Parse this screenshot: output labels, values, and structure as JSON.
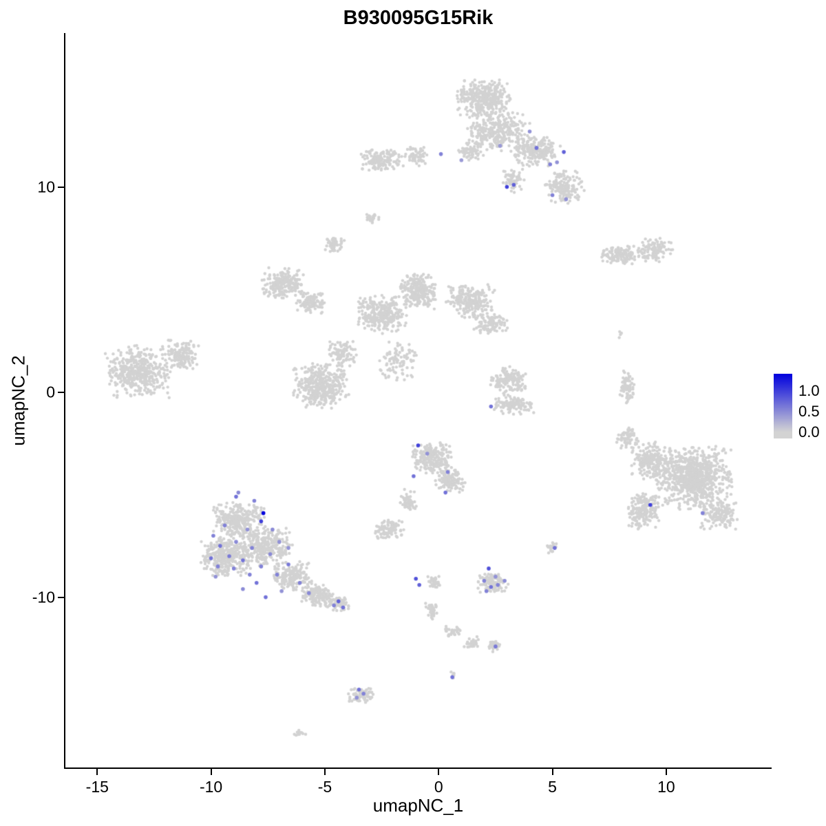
{
  "title": "B930095G15Rik",
  "legend": {
    "labels": {
      "high": "1.0",
      "mid": "0.5",
      "low": "0.0"
    },
    "color_high": "#0000dd",
    "color_low": "#d3d3d3"
  },
  "chart_data": {
    "type": "scatter",
    "title": "B930095G15Rik",
    "xlabel": "umapNC_1",
    "ylabel": "umapNC_2",
    "xlim": [
      -16.4,
      14.6
    ],
    "ylim": [
      -18.3,
      17.5
    ],
    "x_ticks": [
      -15,
      -10,
      -5,
      0,
      5,
      10
    ],
    "y_ticks": [
      10,
      0,
      -10
    ],
    "grid": false,
    "legend_position": "right",
    "point_color_low": "#d3d3d3",
    "point_color_high": "#0000dd",
    "background_point_color": "#d2d2d2",
    "expression_scale_max": 1.3,
    "seed": 42,
    "background_clusters": [
      {
        "cx": 2.0,
        "cy": 14.3,
        "rx": 1.3,
        "ry": 0.95,
        "n": 350
      },
      {
        "cx": 2.6,
        "cy": 12.7,
        "rx": 1.5,
        "ry": 1.0,
        "n": 300
      },
      {
        "cx": 4.3,
        "cy": 11.7,
        "rx": 1.2,
        "ry": 0.8,
        "n": 200
      },
      {
        "cx": 5.5,
        "cy": 10.0,
        "rx": 0.9,
        "ry": 0.9,
        "n": 150
      },
      {
        "cx": 1.4,
        "cy": 11.7,
        "rx": 0.6,
        "ry": 0.5,
        "n": 60
      },
      {
        "cx": 3.3,
        "cy": 10.3,
        "rx": 0.5,
        "ry": 0.6,
        "n": 60
      },
      {
        "cx": -2.5,
        "cy": 11.3,
        "rx": 1.0,
        "ry": 0.6,
        "n": 140
      },
      {
        "cx": -1.0,
        "cy": 11.5,
        "rx": 0.6,
        "ry": 0.5,
        "n": 60
      },
      {
        "cx": -2.9,
        "cy": 8.5,
        "rx": 0.35,
        "ry": 0.3,
        "n": 25
      },
      {
        "cx": -4.6,
        "cy": 7.2,
        "rx": 0.5,
        "ry": 0.45,
        "n": 50
      },
      {
        "cx": 8.0,
        "cy": 6.7,
        "rx": 1.0,
        "ry": 0.5,
        "n": 130
      },
      {
        "cx": 9.5,
        "cy": 6.9,
        "rx": 0.8,
        "ry": 0.6,
        "n": 110
      },
      {
        "cx": 8.1,
        "cy": 2.8,
        "rx": 0.25,
        "ry": 0.25,
        "n": 4
      },
      {
        "cx": -6.8,
        "cy": 5.3,
        "rx": 1.0,
        "ry": 0.8,
        "n": 220
      },
      {
        "cx": -5.6,
        "cy": 4.4,
        "rx": 0.7,
        "ry": 0.6,
        "n": 100
      },
      {
        "cx": -2.5,
        "cy": 3.8,
        "rx": 1.2,
        "ry": 1.0,
        "n": 280
      },
      {
        "cx": -0.9,
        "cy": 4.9,
        "rx": 0.9,
        "ry": 0.9,
        "n": 220
      },
      {
        "cx": 1.4,
        "cy": 4.4,
        "rx": 1.1,
        "ry": 0.9,
        "n": 220
      },
      {
        "cx": 2.3,
        "cy": 3.3,
        "rx": 0.8,
        "ry": 0.6,
        "n": 100
      },
      {
        "cx": -1.8,
        "cy": 1.5,
        "rx": 0.9,
        "ry": 1.0,
        "n": 90
      },
      {
        "cx": -5.2,
        "cy": 0.3,
        "rx": 1.3,
        "ry": 1.2,
        "n": 380
      },
      {
        "cx": -4.2,
        "cy": 1.9,
        "rx": 0.7,
        "ry": 0.7,
        "n": 90
      },
      {
        "cx": -13.2,
        "cy": 1.0,
        "rx": 1.5,
        "ry": 1.3,
        "n": 450
      },
      {
        "cx": -11.3,
        "cy": 1.8,
        "rx": 0.8,
        "ry": 0.8,
        "n": 130
      },
      {
        "cx": 3.1,
        "cy": 0.6,
        "rx": 0.9,
        "ry": 0.7,
        "n": 140
      },
      {
        "cx": 3.3,
        "cy": -0.6,
        "rx": 1.0,
        "ry": 0.5,
        "n": 120
      },
      {
        "cx": 8.3,
        "cy": 0.3,
        "rx": 0.35,
        "ry": 0.9,
        "n": 70
      },
      {
        "cx": 11.2,
        "cy": -4.2,
        "rx": 1.8,
        "ry": 1.6,
        "n": 800
      },
      {
        "cx": 9.3,
        "cy": -3.4,
        "rx": 0.9,
        "ry": 1.0,
        "n": 220
      },
      {
        "cx": 9.0,
        "cy": -5.8,
        "rx": 0.8,
        "ry": 0.9,
        "n": 180
      },
      {
        "cx": 12.3,
        "cy": -6.0,
        "rx": 0.9,
        "ry": 0.7,
        "n": 150
      },
      {
        "cx": 8.3,
        "cy": -2.3,
        "rx": 0.5,
        "ry": 0.6,
        "n": 60
      },
      {
        "cx": -0.3,
        "cy": -3.2,
        "rx": 0.9,
        "ry": 0.8,
        "n": 220
      },
      {
        "cx": 0.5,
        "cy": -4.3,
        "rx": 0.7,
        "ry": 0.6,
        "n": 120
      },
      {
        "cx": -1.3,
        "cy": -5.3,
        "rx": 0.4,
        "ry": 0.7,
        "n": 50
      },
      {
        "cx": -2.2,
        "cy": -6.7,
        "rx": 0.7,
        "ry": 0.5,
        "n": 90
      },
      {
        "cx": -8.8,
        "cy": -6.2,
        "rx": 1.2,
        "ry": 0.9,
        "n": 280
      },
      {
        "cx": -9.4,
        "cy": -8.0,
        "rx": 1.1,
        "ry": 1.1,
        "n": 320
      },
      {
        "cx": -7.6,
        "cy": -7.6,
        "rx": 1.2,
        "ry": 1.1,
        "n": 300
      },
      {
        "cx": -6.4,
        "cy": -9.0,
        "rx": 0.9,
        "ry": 0.8,
        "n": 180
      },
      {
        "cx": -5.3,
        "cy": -9.9,
        "rx": 0.8,
        "ry": 0.6,
        "n": 130
      },
      {
        "cx": -4.4,
        "cy": -10.3,
        "rx": 0.6,
        "ry": 0.4,
        "n": 80
      },
      {
        "cx": 2.4,
        "cy": -9.3,
        "rx": 0.7,
        "ry": 0.5,
        "n": 110
      },
      {
        "cx": -0.2,
        "cy": -9.3,
        "rx": 0.3,
        "ry": 0.4,
        "n": 30
      },
      {
        "cx": -0.3,
        "cy": -10.6,
        "rx": 0.3,
        "ry": 0.5,
        "n": 35
      },
      {
        "cx": 0.6,
        "cy": -11.7,
        "rx": 0.4,
        "ry": 0.3,
        "n": 30
      },
      {
        "cx": 1.5,
        "cy": -12.2,
        "rx": 0.4,
        "ry": 0.3,
        "n": 30
      },
      {
        "cx": 2.4,
        "cy": -12.4,
        "rx": 0.3,
        "ry": 0.3,
        "n": 30
      },
      {
        "cx": -3.4,
        "cy": -14.8,
        "rx": 0.6,
        "ry": 0.4,
        "n": 70
      },
      {
        "cx": -6.1,
        "cy": -16.6,
        "rx": 0.3,
        "ry": 0.2,
        "n": 12
      },
      {
        "cx": 5.0,
        "cy": -7.6,
        "rx": 0.3,
        "ry": 0.3,
        "n": 25
      },
      {
        "cx": 0.7,
        "cy": -13.8,
        "rx": 0.3,
        "ry": 0.3,
        "n": 6
      }
    ],
    "expressing_points": [
      [
        4.3,
        11.9,
        0.6
      ],
      [
        5.5,
        11.7,
        0.7
      ],
      [
        5.2,
        11.2,
        0.4
      ],
      [
        4.9,
        11.1,
        0.5
      ],
      [
        3.0,
        10.0,
        0.9
      ],
      [
        3.3,
        10.1,
        0.7
      ],
      [
        5.0,
        9.6,
        0.5
      ],
      [
        5.6,
        9.4,
        0.4
      ],
      [
        0.1,
        11.6,
        0.5
      ],
      [
        1.0,
        11.3,
        0.35
      ],
      [
        2.7,
        12.0,
        0.35
      ],
      [
        4.0,
        12.7,
        0.4
      ],
      [
        2.3,
        -0.7,
        0.6
      ],
      [
        9.3,
        -5.5,
        0.9
      ],
      [
        11.6,
        -5.9,
        0.5
      ],
      [
        -0.9,
        -2.6,
        0.9
      ],
      [
        -1.1,
        -4.1,
        0.6
      ],
      [
        0.3,
        -4.9,
        0.6
      ],
      [
        0.4,
        -3.9,
        0.5
      ],
      [
        -0.5,
        -3.0,
        0.4
      ],
      [
        -1.0,
        -9.1,
        0.8
      ],
      [
        -0.85,
        -9.4,
        0.7
      ],
      [
        2.2,
        -8.6,
        0.8
      ],
      [
        2.0,
        -9.2,
        0.5
      ],
      [
        2.3,
        -9.5,
        0.6
      ],
      [
        2.6,
        -9.4,
        0.5
      ],
      [
        2.9,
        -9.2,
        0.45
      ],
      [
        2.1,
        -9.7,
        0.5
      ],
      [
        2.5,
        -9.0,
        0.4
      ],
      [
        5.1,
        -7.6,
        0.6
      ],
      [
        2.5,
        -12.4,
        0.55
      ],
      [
        0.6,
        -13.9,
        0.6
      ],
      [
        -3.5,
        -14.5,
        0.6
      ],
      [
        -3.3,
        -14.7,
        0.5
      ],
      [
        -3.6,
        -14.9,
        0.4
      ],
      [
        -8.9,
        -5.1,
        0.6
      ],
      [
        -8.1,
        -5.3,
        0.5
      ],
      [
        -7.7,
        -5.9,
        1.3
      ],
      [
        -7.8,
        -6.3,
        0.9
      ],
      [
        -9.9,
        -7.0,
        0.5
      ],
      [
        -9.6,
        -7.5,
        0.6
      ],
      [
        -10.0,
        -8.1,
        0.6
      ],
      [
        -9.7,
        -8.5,
        0.5
      ],
      [
        -9.2,
        -8.0,
        0.55
      ],
      [
        -9.0,
        -8.6,
        0.5
      ],
      [
        -8.6,
        -8.2,
        0.6
      ],
      [
        -8.3,
        -8.9,
        0.5
      ],
      [
        -8.0,
        -9.3,
        0.6
      ],
      [
        -8.6,
        -9.6,
        0.45
      ],
      [
        -7.8,
        -8.5,
        0.5
      ],
      [
        -7.4,
        -7.9,
        0.45
      ],
      [
        -7.1,
        -8.9,
        0.5
      ],
      [
        -6.6,
        -8.4,
        0.55
      ],
      [
        -7.6,
        -10.0,
        0.6
      ],
      [
        -8.9,
        -7.3,
        0.45
      ],
      [
        -9.4,
        -6.5,
        0.5
      ],
      [
        -8.4,
        -6.7,
        0.4
      ],
      [
        -7.0,
        -7.3,
        0.4
      ],
      [
        -6.1,
        -9.3,
        0.5
      ],
      [
        -5.7,
        -9.8,
        0.45
      ],
      [
        -4.4,
        -10.2,
        0.7
      ],
      [
        -4.2,
        -10.5,
        0.6
      ],
      [
        -4.6,
        -10.4,
        0.5
      ],
      [
        -8.8,
        -4.9,
        0.45
      ],
      [
        -9.8,
        -9.0,
        0.4
      ],
      [
        -6.9,
        -9.7,
        0.4
      ],
      [
        -8.2,
        -7.6,
        0.5
      ],
      [
        -7.3,
        -6.7,
        0.45
      ],
      [
        -6.6,
        -7.6,
        0.4
      ]
    ]
  }
}
